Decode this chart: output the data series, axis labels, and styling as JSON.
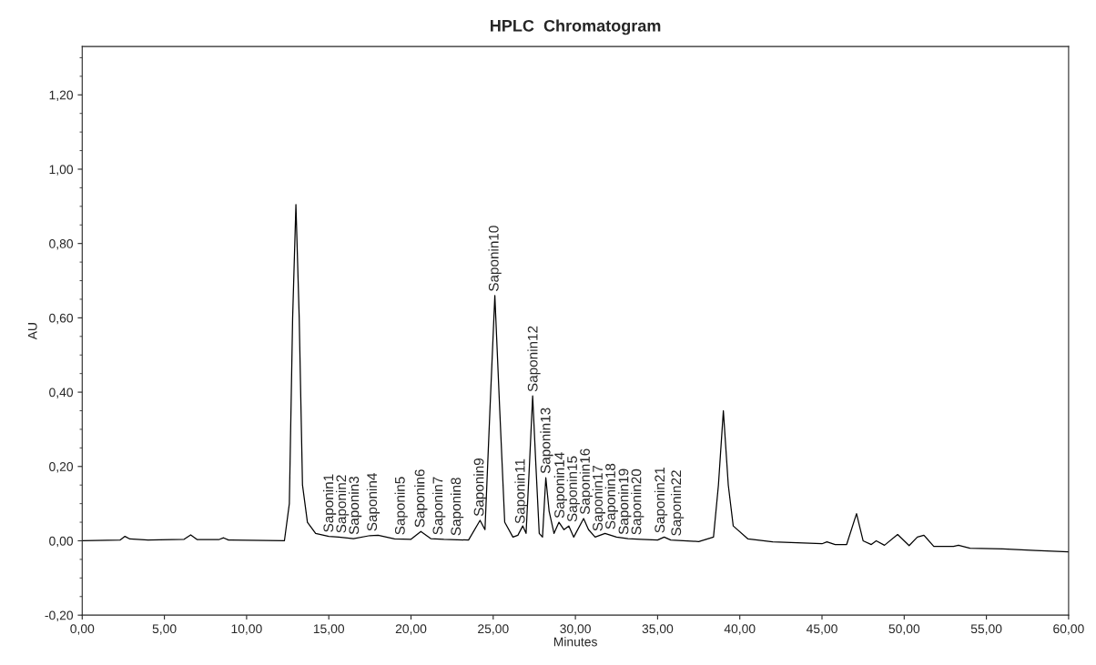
{
  "chart_data": {
    "type": "line",
    "title": "HPLC  Chromatogram",
    "xlabel": "Minutes",
    "ylabel": "AU",
    "xlim": [
      0,
      60
    ],
    "ylim": [
      -0.2,
      1.33
    ],
    "xticks": [
      {
        "value": 0,
        "label": "0,00"
      },
      {
        "value": 5,
        "label": "5,00"
      },
      {
        "value": 10,
        "label": "10,00"
      },
      {
        "value": 15,
        "label": "15,00"
      },
      {
        "value": 20,
        "label": "20,00"
      },
      {
        "value": 25,
        "label": "25,00"
      },
      {
        "value": 30,
        "label": "30,00"
      },
      {
        "value": 35,
        "label": "35,00"
      },
      {
        "value": 40,
        "label": "40,00"
      },
      {
        "value": 45,
        "label": "45,00"
      },
      {
        "value": 50,
        "label": "50,00"
      },
      {
        "value": 55,
        "label": "55,00"
      },
      {
        "value": 60,
        "label": "60,00"
      }
    ],
    "yticks": [
      {
        "value": -0.2,
        "label": "-0,20"
      },
      {
        "value": 0,
        "label": "0,00"
      },
      {
        "value": 0.2,
        "label": "0,20"
      },
      {
        "value": 0.4,
        "label": "0,40"
      },
      {
        "value": 0.6,
        "label": "0,60"
      },
      {
        "value": 0.8,
        "label": "0,80"
      },
      {
        "value": 1.0,
        "label": "1,00"
      },
      {
        "value": 1.2,
        "label": "1,20"
      }
    ],
    "grid": false,
    "marker": "none",
    "line_style": "solid",
    "series": [
      {
        "color": "#000000",
        "x": [
          0,
          2.3,
          2.6,
          2.9,
          4,
          6.2,
          6.6,
          7.0,
          8.3,
          8.6,
          8.9,
          12.3,
          12.6,
          12.8,
          13.0,
          13.2,
          13.4,
          13.7,
          14.2,
          15,
          15.6,
          16.5,
          17.5,
          18,
          19,
          20,
          20.6,
          21.2,
          22,
          23.5,
          24.2,
          24.5,
          24.8,
          25.1,
          25.4,
          25.7,
          26.2,
          26.5,
          26.8,
          27.0,
          27.2,
          27.4,
          27.6,
          27.8,
          28.0,
          28.2,
          28.4,
          28.7,
          29.0,
          29.3,
          29.6,
          29.9,
          30.5,
          30.8,
          31.2,
          31.8,
          32.5,
          33.2,
          34.0,
          35.0,
          35.4,
          35.8,
          37.5,
          38.4,
          38.7,
          39.0,
          39.3,
          39.6,
          40.5,
          42,
          45,
          45.3,
          45.8,
          46.5,
          47.1,
          47.5,
          48,
          48.3,
          48.8,
          49.6,
          50.3,
          50.8,
          51.2,
          51.8,
          53,
          53.3,
          54,
          56,
          58,
          60
        ],
        "values": [
          0,
          0.002,
          0.012,
          0.005,
          0.002,
          0.004,
          0.016,
          0.003,
          0.003,
          0.008,
          0.002,
          0,
          0.1,
          0.6,
          0.905,
          0.6,
          0.15,
          0.05,
          0.02,
          0.012,
          0.01,
          0.006,
          0.014,
          0.015,
          0.005,
          0.004,
          0.025,
          0.006,
          0.004,
          0.002,
          0.055,
          0.03,
          0.35,
          0.66,
          0.35,
          0.05,
          0.01,
          0.015,
          0.04,
          0.02,
          0.2,
          0.39,
          0.2,
          0.02,
          0.01,
          0.17,
          0.08,
          0.02,
          0.05,
          0.03,
          0.04,
          0.01,
          0.06,
          0.03,
          0.01,
          0.02,
          0.01,
          0.006,
          0.004,
          0.002,
          0.01,
          0.002,
          -0.002,
          0.01,
          0.15,
          0.35,
          0.15,
          0.04,
          0.005,
          -0.003,
          -0.008,
          -0.003,
          -0.01,
          -0.01,
          0.073,
          0.0,
          -0.01,
          0.0,
          -0.012,
          0.017,
          -0.013,
          0.01,
          0.015,
          -0.015,
          -0.015,
          -0.012,
          -0.02,
          -0.022,
          -0.026,
          -0.03
        ]
      }
    ],
    "annotations": [
      {
        "text": "Saponin1",
        "x": 15.05,
        "y": 0.012
      },
      {
        "text": "Saponin2",
        "x": 15.5,
        "y": 0.01
      },
      {
        "text": "Saponin3",
        "x": 16.5,
        "y": 0.006
      },
      {
        "text": "Saponin4",
        "x": 17.7,
        "y": 0.015
      },
      {
        "text": "Saponin5",
        "x": 19.4,
        "y": 0.005
      },
      {
        "text": "Saponin6",
        "x": 20.6,
        "y": 0.025
      },
      {
        "text": "Saponin7",
        "x": 21.7,
        "y": 0.005
      },
      {
        "text": "Saponin8",
        "x": 22.8,
        "y": 0.003
      },
      {
        "text": "Saponin9",
        "x": 24.2,
        "y": 0.055
      },
      {
        "text": "Saponin10",
        "x": 25.1,
        "y": 0.66
      },
      {
        "text": "Saponin11",
        "x": 26.7,
        "y": 0.035
      },
      {
        "text": "Saponin12",
        "x": 27.4,
        "y": 0.39
      },
      {
        "text": "Saponin13",
        "x": 28.2,
        "y": 0.17
      },
      {
        "text": "Saponin14",
        "x": 29.1,
        "y": 0.05
      },
      {
        "text": "Saponin15",
        "x": 29.5,
        "y": 0.04
      },
      {
        "text": "Saponin16",
        "x": 30.6,
        "y": 0.06
      },
      {
        "text": "Saponin17",
        "x": 31.4,
        "y": 0.015
      },
      {
        "text": "Saponin18",
        "x": 31.8,
        "y": 0.02
      },
      {
        "text": "Saponin19",
        "x": 33.0,
        "y": 0.006
      },
      {
        "text": "Saponin20",
        "x": 33.6,
        "y": 0.005
      },
      {
        "text": "Saponin21",
        "x": 35.2,
        "y": 0.01
      },
      {
        "text": "Saponin22",
        "x": 36.2,
        "y": 0.002
      }
    ]
  }
}
